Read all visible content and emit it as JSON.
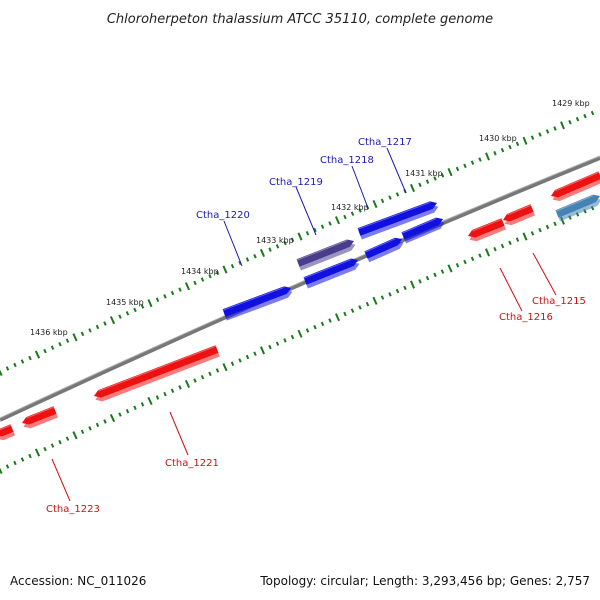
{
  "title": "Chloroherpeton thalassium ATCC 35110, complete genome",
  "footer": {
    "accession": "Accession: NC_011026",
    "summary": "Topology: circular; Length: 3,293,456 bp; Genes: 2,757"
  },
  "colors": {
    "forward_gene": "#1010e0",
    "reverse_gene": "#ee1111",
    "highlight_gene": "#4a3c8c",
    "alt_gene": "#4682b4",
    "backbone": "#888888",
    "ticks": "#1a7a1a",
    "forward_label": "#1a1ab0",
    "reverse_label": "#cc1111"
  },
  "kbp_labels": [
    {
      "text": "1429 kbp"
    },
    {
      "text": "1430 kbp"
    },
    {
      "text": "1431 kbp"
    },
    {
      "text": "1432 kbp"
    },
    {
      "text": "1433 kbp"
    },
    {
      "text": "1434 kbp"
    },
    {
      "text": "1435 kbp"
    },
    {
      "text": "1436 kbp"
    }
  ],
  "forward_genes": [
    "Ctha_1217",
    "Ctha_1218",
    "Ctha_1219",
    "Ctha_1220"
  ],
  "reverse_genes": [
    "Ctha_1215",
    "Ctha_1216",
    "Ctha_1221",
    "Ctha_1223"
  ]
}
